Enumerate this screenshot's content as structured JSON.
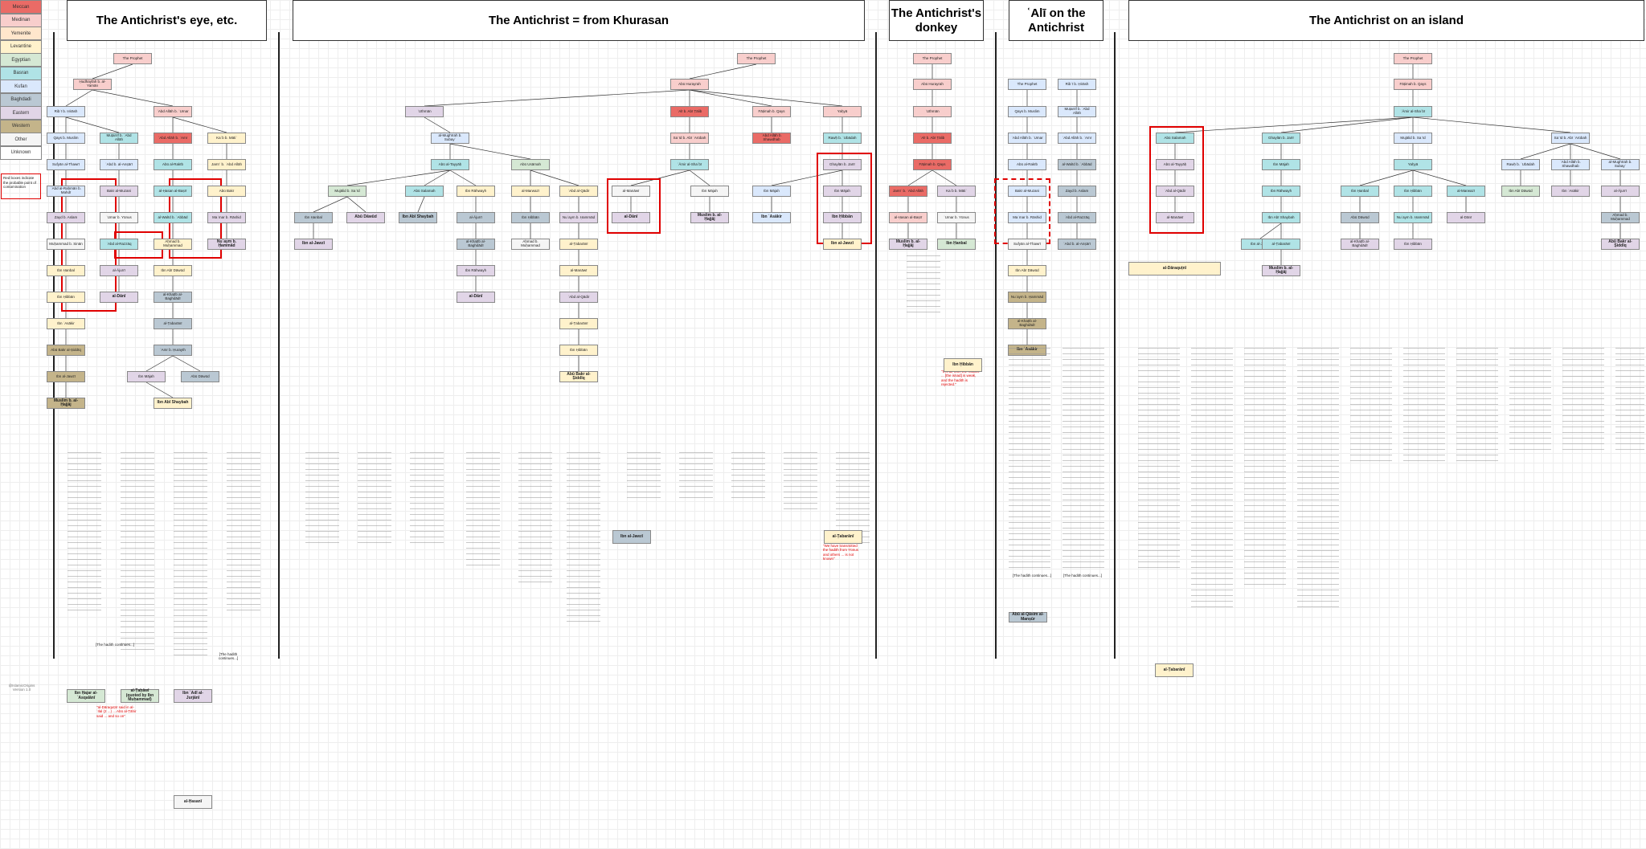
{
  "legend": [
    {
      "label": "Meccan",
      "color": "#ea6b66"
    },
    {
      "label": "Medinan",
      "color": "#f8cecc"
    },
    {
      "label": "Yemenite",
      "color": "#ffe6cc"
    },
    {
      "label": "Levantine",
      "color": "#fff2cc"
    },
    {
      "label": "Egyptian",
      "color": "#d5e8d4"
    },
    {
      "label": "Basran",
      "color": "#b0e3e6"
    },
    {
      "label": "Kufan",
      "color": "#dae8fc"
    },
    {
      "label": "Baghdadi",
      "color": "#bac8d3"
    },
    {
      "label": "Eastern",
      "color": "#e1d5e7"
    },
    {
      "label": "Western",
      "color": "#c4b48a"
    },
    {
      "label": "Other",
      "color": "#f5f5f5"
    },
    {
      "label": "Unknown",
      "color": "#ffffff"
    }
  ],
  "legend_note": "Red boxes indicate the probable point of contamination",
  "credit": "@IslamicOrigins\nVersion 1.0",
  "sections": [
    {
      "title": "The Antichrist's eye, etc."
    },
    {
      "title": "The Antichrist = from Khurasan"
    },
    {
      "title": "The Antichrist's donkey"
    },
    {
      "title": "ʿAlī on the Antichrist"
    },
    {
      "title": "The Antichrist on an island"
    }
  ],
  "nodes": {
    "p1": "The Prophet",
    "p2": "The Prophet",
    "p3": "The Prophet",
    "p4": "The Prophet",
    "hudhayfa": "Ḥudhayfah b. al-Yamān",
    "ribi": "Ribʿī b. Ḥirāsh",
    "abdallah_umar": "ʿAbd Allāh b. ʿUmar",
    "qays": "Qays b. Muslim",
    "mutarrif": "Muṭarrif b. ʿAbd Allāh",
    "abdallah_amr": "ʿAbd Allāh b. ʿAmr",
    "abu_rakib": "Abū al-Rakīb",
    "kab": "Kaʿb b. Mātiʿ",
    "sufyan": "Sufyān al-Thawrī",
    "abd_rahman_mahdi": "ʿAbd al-Raḥmān b. Mahdī",
    "jamiʿ": "Jamīʿ b. ʿAbd Allāh",
    "abd_ansari": "ʿAbd b. al-Anṣārī",
    "bakr": "Bakr al-Muzani",
    "hasan": "al-Ḥasan al-Baṣrī",
    "walid": "al-Walīd b. ʿAbbād",
    "abu_bakr": "Abū Bakr",
    "zayd": "Zayd b. Aslam",
    "mamar": "Maʿmar b. Rāshid",
    "umar_yunus": "ʿUmar b. Yūnus",
    "muhammad_sinan": "Muḥammad b. Sinān",
    "abd_razzaq": "ʿAbd al-Razzāq",
    "ibn_hanbal": "Ibn Ḥanbal",
    "ibn_abi_dawud": "Ibn Abī Dāwūd",
    "al_ajurri": "al-Ājurrī",
    "ahmad_sharqi": "Aḥmad b. Muḥammad",
    "ibn_hibban": "Ibn Ḥibbān",
    "nuaym": "Nuʿaym b. Ḥammād",
    "al_dani": "al-Dānī",
    "al_khatib": "al-Khaṭīb al-Baghdādī",
    "ibn_asakir": "Ibn ʿAsākir",
    "al_tabarani": "al-Ṭabarānī",
    "abu_bakr_sid": "Abū Bakr al-Ṣiddīq",
    "amr_hurayth": "ʿAmr b. Ḥurayth",
    "al_mughira": "al-Mughīrah b. Subayʿ",
    "abu_tayyah": "Abū al-Tayyāḥ",
    "rawh": "Rawḥ b. ʿUbādah",
    "said": "Saʿīd b. Abī ʿArūbah",
    "abdallah_shawdhab": "ʿAbd Allāh b. Shawdhab",
    "yahya": "Yaḥyā",
    "abu_usamah": "Abū Usāmah",
    "abu_hurayrah": "Abū Hurayrah",
    "uthman": "ʿUthmān",
    "ali": "ʿAlī b. Abī Ṭālib",
    "fatimah": "Fāṭimah b. Qays",
    "amir": "ʿĀmir al-Shaʿbī",
    "abu_salamah": "Abū Salamah",
    "ghaylan": "Ghaylān b. Jarīr",
    "mujalid": "Mujālid b. Saʿīd",
    "ibn_majah": "Ibn Mājah",
    "muslim": "Muslim b. al-Ḥajjāj",
    "abu_dawud": "Abū Dāwūd",
    "ibn_abi_shaybah": "Ibn Abī Shaybah",
    "ibn_rahwayh": "Ibn Rāhwayh",
    "al_marwazi": "al-Marwazī",
    "abd_qadir": "ʿAbd al-Qādir",
    "al_manawi": "al-Manāwī",
    "ibn_jawzi": "Ibn al-Jawzī"
  },
  "notes": [
    "\"al-Dāraquṭnī said in al-ʿIlal (2 ...) ... Abū al-Ṭāhir said ... and so on\"",
    "[The hadith continues...]",
    "[The hadith continues...]",
    "[The hadith continues...]",
    "\"It is all from the Kufans ... [the isnad] is weak, and the hadith is rejected.\"",
    "\"We have transmitted the hadith from Yūnus and others ... is not known\"",
    "[The hadith continues...]"
  ],
  "source_labels": [
    {
      "label": "Ibn Ḥajar al-ʿAsqalānī"
    },
    {
      "label": "al-Ṭaḥāwī (quoted by Ibn Muḥammad)"
    },
    {
      "label": "Ibn ʿAdī al-Jurjānī"
    },
    {
      "label": "al-Ḥasanī"
    },
    {
      "label": "Ibn al-Jawzī"
    },
    {
      "label": "al-Ṭabarānī"
    },
    {
      "label": "al-Ṭabarānī"
    },
    {
      "label": "Ibn Ḥibbān"
    },
    {
      "label": "Abū al-Qāsim al-Manṣūr"
    },
    {
      "label": "al-Dāraquṭnī"
    }
  ]
}
